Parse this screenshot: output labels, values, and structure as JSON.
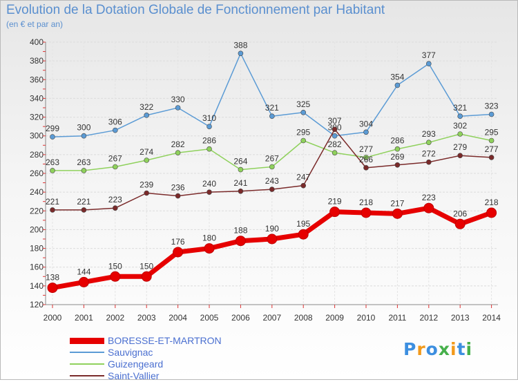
{
  "header": {
    "title": "Evolution de la Dotation Globale de Fonctionnement par Habitant",
    "subtitle": "(en € et par an)"
  },
  "logo": {
    "text": "Proxiti",
    "colors": [
      "#3d8fe0",
      "#f29a1c",
      "#46b04b"
    ]
  },
  "chart_data": {
    "type": "line",
    "title": "Evolution de la Dotation Globale de Fonctionnement par Habitant",
    "ylabel": "(en € et par an)",
    "xlabel": "",
    "ylim": [
      120,
      400
    ],
    "yticks": [
      120,
      140,
      160,
      180,
      200,
      220,
      240,
      260,
      280,
      300,
      320,
      340,
      360,
      380,
      400
    ],
    "grid": true,
    "legend_position": "bottom-left",
    "categories": [
      "2000",
      "2001",
      "2002",
      "2003",
      "2004",
      "2005",
      "2006",
      "2007",
      "2008",
      "2009",
      "2010",
      "2011",
      "2012",
      "2013",
      "2014"
    ],
    "series": [
      {
        "name": "BORESSE-ET-MARTRON",
        "color": "#e60000",
        "values": [
          138,
          144,
          150,
          150,
          176,
          180,
          188,
          190,
          195,
          219,
          218,
          217,
          223,
          206,
          218
        ]
      },
      {
        "name": "Sauvignac",
        "color": "#5b9bd5",
        "values": [
          299,
          300,
          306,
          322,
          330,
          310,
          388,
          321,
          325,
          300,
          304,
          354,
          377,
          321,
          323
        ]
      },
      {
        "name": "Guizengeard",
        "color": "#8fd15c",
        "values": [
          263,
          263,
          267,
          274,
          282,
          286,
          264,
          267,
          295,
          282,
          277,
          286,
          293,
          302,
          295
        ]
      },
      {
        "name": "Saint-Vallier",
        "color": "#7a2a2a",
        "values": [
          221,
          221,
          223,
          239,
          236,
          240,
          241,
          243,
          247,
          307,
          266,
          269,
          272,
          279,
          277
        ]
      }
    ]
  }
}
